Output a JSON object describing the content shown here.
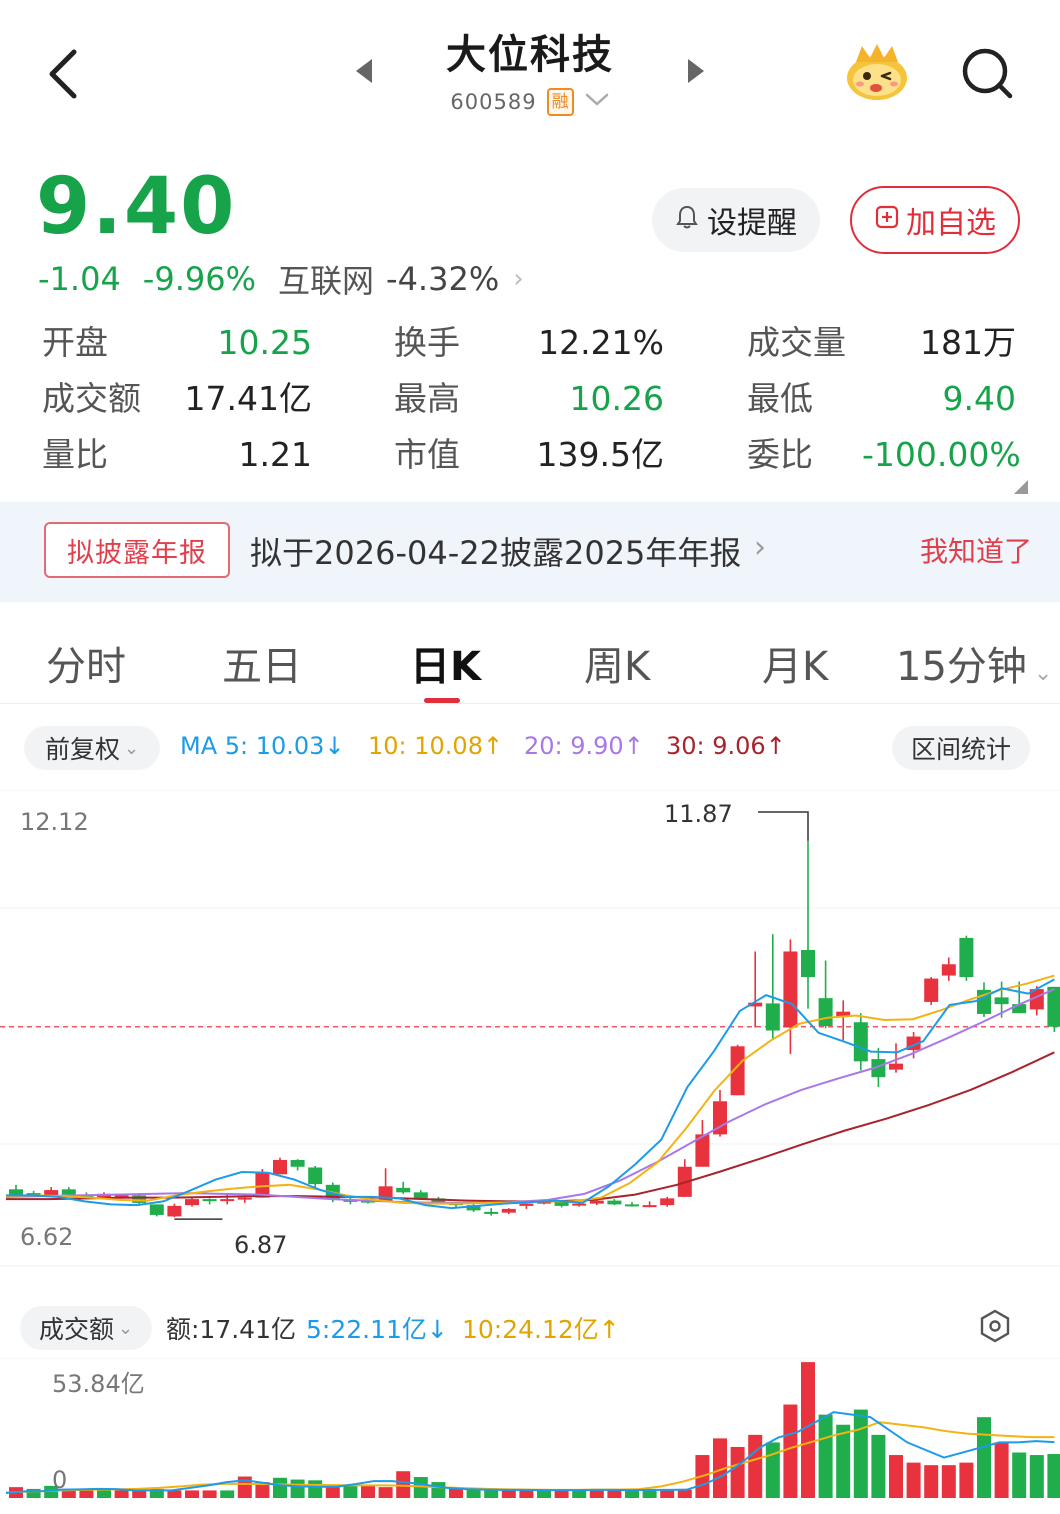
{
  "header": {
    "stock_name": "大位科技",
    "stock_code": "600589",
    "margin_badge": "融"
  },
  "quote": {
    "price": "9.40",
    "change": "-1.04",
    "change_pct": "-9.96%",
    "industry": "互联网",
    "industry_pct": "-4.32%"
  },
  "actions": {
    "remind_label": "设提醒",
    "add_label": "加自选"
  },
  "stats": [
    [
      {
        "label": "开盘",
        "value": "10.25",
        "color": "green"
      },
      {
        "label": "换手",
        "value": "12.21%",
        "color": "normal"
      },
      {
        "label": "成交量",
        "value": "181万",
        "color": "normal"
      }
    ],
    [
      {
        "label": "成交额",
        "value": "17.41亿",
        "color": "normal"
      },
      {
        "label": "最高",
        "value": "10.26",
        "color": "green"
      },
      {
        "label": "最低",
        "value": "9.40",
        "color": "green"
      }
    ],
    [
      {
        "label": "量比",
        "value": "1.21",
        "color": "normal"
      },
      {
        "label": "市值",
        "value": "139.5亿",
        "color": "normal"
      },
      {
        "label": "委比",
        "value": "-100.00%",
        "color": "green"
      }
    ]
  ],
  "notice": {
    "badge": "拟披露年报",
    "text": "拟于2026-04-22披露2025年年报",
    "dismiss": "我知道了"
  },
  "tabs": [
    "分时",
    "五日",
    "日K",
    "周K",
    "月K",
    "15分钟"
  ],
  "active_tab": "日K",
  "ma_bar": {
    "adjust": "前复权",
    "ma5": "MA 5: 10.03↓",
    "ma10": "10: 10.08↑",
    "ma20": "20: 9.90↑",
    "ma30": "30: 9.06↑",
    "range_stats": "区间统计"
  },
  "colors": {
    "up": "#e8323d",
    "down": "#1fae4b",
    "ma5": "#1e9be8",
    "ma10": "#f2b313",
    "ma20": "#a878e8",
    "ma30": "#a8242c",
    "price_green": "#16a34a"
  },
  "chart_data": [
    {
      "type": "candlestick",
      "title": "日K",
      "y_axis_top_label": "12.12",
      "y_axis_bottom_label": "6.62",
      "ylim": [
        6.62,
        12.12
      ],
      "annotations": {
        "high": "11.87",
        "low": "6.87"
      },
      "current_price_line": 9.4,
      "ohlc": [
        [
          7.24,
          7.3,
          7.14,
          7.17
        ],
        [
          7.19,
          7.22,
          7.14,
          7.18
        ],
        [
          7.16,
          7.27,
          7.15,
          7.23
        ],
        [
          7.24,
          7.27,
          7.14,
          7.17
        ],
        [
          7.16,
          7.2,
          7.12,
          7.14
        ],
        [
          7.13,
          7.2,
          7.11,
          7.18
        ],
        [
          7.15,
          7.18,
          7.13,
          7.16
        ],
        [
          7.16,
          7.19,
          7.03,
          7.06
        ],
        [
          7.04,
          7.04,
          6.88,
          6.9
        ],
        [
          6.88,
          7.05,
          6.87,
          7.02
        ],
        [
          7.03,
          7.13,
          7.01,
          7.11
        ],
        [
          7.11,
          7.12,
          7.04,
          7.1
        ],
        [
          7.1,
          7.18,
          7.04,
          7.11
        ],
        [
          7.11,
          7.17,
          7.06,
          7.13
        ],
        [
          7.13,
          7.51,
          7.13,
          7.47
        ],
        [
          7.44,
          7.66,
          7.44,
          7.63
        ],
        [
          7.63,
          7.64,
          7.49,
          7.54
        ],
        [
          7.53,
          7.55,
          7.27,
          7.31
        ],
        [
          7.3,
          7.33,
          7.07,
          7.11
        ],
        [
          7.1,
          7.13,
          7.04,
          7.09
        ],
        [
          7.09,
          7.11,
          7.05,
          7.07
        ],
        [
          7.09,
          7.52,
          7.08,
          7.28
        ],
        [
          7.26,
          7.34,
          7.18,
          7.2
        ],
        [
          7.2,
          7.23,
          7.1,
          7.12
        ],
        [
          7.12,
          7.14,
          7.05,
          7.06
        ],
        [
          7.06,
          7.07,
          7.0,
          7.03
        ],
        [
          7.03,
          7.06,
          6.94,
          6.96
        ],
        [
          6.94,
          6.99,
          6.89,
          6.93
        ],
        [
          6.93,
          6.99,
          6.91,
          6.98
        ],
        [
          7.02,
          7.05,
          6.98,
          7.05
        ],
        [
          7.05,
          7.1,
          7.04,
          7.08
        ],
        [
          7.08,
          7.1,
          7.0,
          7.02
        ],
        [
          7.03,
          7.07,
          7.01,
          7.05
        ],
        [
          7.05,
          7.1,
          7.03,
          7.09
        ],
        [
          7.09,
          7.11,
          7.03,
          7.04
        ],
        [
          7.04,
          7.07,
          7.01,
          7.03
        ],
        [
          7.03,
          7.08,
          7.0,
          7.03
        ],
        [
          7.03,
          7.14,
          7.01,
          7.12
        ],
        [
          7.14,
          7.64,
          7.14,
          7.54
        ],
        [
          7.54,
          8.16,
          7.54,
          7.97
        ],
        [
          7.97,
          8.56,
          7.94,
          8.41
        ],
        [
          8.49,
          9.16,
          8.49,
          9.14
        ],
        [
          9.67,
          10.4,
          9.39,
          9.72
        ],
        [
          9.71,
          10.63,
          9.22,
          9.35
        ],
        [
          9.39,
          10.56,
          9.04,
          10.4
        ],
        [
          10.42,
          11.87,
          9.64,
          10.06
        ],
        [
          9.78,
          10.28,
          9.38,
          9.41
        ],
        [
          9.53,
          9.75,
          9.22,
          9.6
        ],
        [
          9.46,
          9.58,
          8.82,
          8.94
        ],
        [
          8.97,
          9.12,
          8.6,
          8.73
        ],
        [
          8.83,
          9.18,
          8.79,
          8.91
        ],
        [
          9.09,
          9.33,
          8.98,
          9.27
        ],
        [
          9.73,
          10.06,
          9.69,
          10.04
        ],
        [
          10.08,
          10.32,
          10.01,
          10.23
        ],
        [
          10.58,
          10.61,
          10.01,
          10.06
        ],
        [
          9.89,
          9.99,
          9.53,
          9.57
        ],
        [
          9.79,
          10.0,
          9.52,
          9.7
        ],
        [
          9.7,
          10.0,
          9.58,
          9.58
        ],
        [
          9.63,
          9.94,
          9.55,
          9.9
        ],
        [
          9.93,
          9.93,
          9.33,
          9.4
        ]
      ],
      "ma5_trend": [
        7.16,
        7.16,
        7.14,
        7.08,
        7.04,
        7.03,
        7.08,
        7.22,
        7.37,
        7.47,
        7.46,
        7.37,
        7.23,
        7.14,
        7.14,
        7.12,
        7.03,
        6.99,
        7.02,
        7.05,
        7.07,
        7.09,
        7.06,
        7.28,
        7.57,
        7.9,
        8.6,
        9.07,
        9.61,
        9.82,
        9.7,
        9.32,
        9.2,
        9.07,
        9.06,
        9.21,
        9.69,
        9.74,
        9.91,
        9.84,
        10.03
      ],
      "ma10_trend": [
        7.15,
        7.16,
        7.15,
        7.13,
        7.1,
        7.09,
        7.16,
        7.21,
        7.25,
        7.28,
        7.3,
        7.24,
        7.16,
        7.1,
        7.06,
        7.05,
        7.05,
        7.06,
        7.06,
        7.08,
        7.08,
        7.13,
        7.32,
        7.6,
        8.05,
        8.55,
        8.95,
        9.22,
        9.44,
        9.52,
        9.55,
        9.49,
        9.5,
        9.62,
        9.76,
        9.88,
        9.97,
        10.08
      ],
      "ma20_trend": [
        7.14,
        7.15,
        7.16,
        7.17,
        7.18,
        7.19,
        7.18,
        7.17,
        7.14,
        7.11,
        7.09,
        7.07,
        7.06,
        7.06,
        7.07,
        7.1,
        7.18,
        7.36,
        7.6,
        7.87,
        8.14,
        8.37,
        8.56,
        8.71,
        8.85,
        9.03,
        9.24,
        9.46,
        9.69,
        9.9
      ],
      "ma30_trend": [
        7.11,
        7.11,
        7.12,
        7.13,
        7.13,
        7.14,
        7.15,
        7.15,
        7.14,
        7.13,
        7.11,
        7.09,
        7.08,
        7.08,
        7.1,
        7.17,
        7.3,
        7.47,
        7.65,
        7.84,
        8.02,
        8.18,
        8.36,
        8.56,
        8.8,
        9.06
      ]
    },
    {
      "type": "bar",
      "title": "成交额",
      "y_axis_top_label": "53.84亿",
      "y_axis_bottom_label": "0",
      "ylim": [
        0,
        53.84
      ],
      "unit": "亿",
      "values": [
        4.3,
        3.6,
        4.8,
        3.0,
        3.0,
        3.0,
        3.0,
        3.0,
        3.6,
        3.0,
        3.0,
        3.0,
        3.0,
        8.5,
        6.3,
        8.0,
        7.3,
        7.0,
        4.3,
        4.8,
        4.8,
        4.3,
        10.6,
        8.3,
        6.3,
        3.6,
        3.3,
        3.0,
        3.0,
        3.3,
        3.0,
        3.3,
        3.0,
        3.0,
        3.3,
        3.0,
        3.0,
        3.0,
        3.3,
        17.0,
        23.6,
        20.2,
        25.0,
        22.0,
        37.0,
        53.8,
        33.0,
        29.0,
        35.0,
        25.0,
        17.0,
        14.0,
        13.0,
        13.0,
        14.0,
        32.0,
        22.0,
        18.0,
        17.0,
        17.4
      ],
      "up_flags": [
        1,
        0,
        0,
        1,
        1,
        0,
        1,
        1,
        0,
        1,
        1,
        1,
        0,
        1,
        1,
        0,
        0,
        0,
        1,
        0,
        1,
        1,
        1,
        0,
        0,
        1,
        0,
        0,
        1,
        1,
        0,
        1,
        0,
        1,
        1,
        0,
        0,
        1,
        1,
        1,
        1,
        1,
        1,
        0,
        1,
        1,
        0,
        0,
        0,
        0,
        1,
        1,
        1,
        1,
        1,
        0,
        1,
        0,
        0,
        0
      ],
      "ma5_trend": [
        2.0,
        2.6,
        2.7,
        3.3,
        3.4,
        3.6,
        3.5,
        3.0,
        3.0,
        3.0,
        4.0,
        5.0,
        6.3,
        7.0,
        6.0,
        5.0,
        4.6,
        4.4,
        4.5,
        5.5,
        6.7,
        6.7,
        6.0,
        5.0,
        4.0,
        3.5,
        3.3,
        3.2,
        3.2,
        3.1,
        3.1,
        3.1,
        3.2,
        3.2,
        3.1,
        3.2,
        3.2,
        3.3,
        5.5,
        9.0,
        14.0,
        20.0,
        24.0,
        26.0,
        30.0,
        34.0,
        33.0,
        32.0,
        27.0,
        22.0,
        19.0,
        16.0,
        18.0,
        20.0,
        22.0,
        22.0,
        22.5,
        22.1
      ],
      "ma10_trend": [
        2.2,
        2.5,
        2.8,
        3.1,
        3.3,
        3.4,
        3.6,
        4.0,
        4.6,
        5.3,
        5.6,
        5.6,
        5.5,
        5.3,
        5.2,
        5.1,
        5.0,
        5.0,
        4.9,
        4.6,
        4.2,
        3.9,
        3.6,
        3.4,
        3.3,
        3.2,
        3.2,
        3.3,
        3.3,
        3.5,
        4.6,
        6.5,
        9.0,
        12.0,
        14.5,
        17.0,
        20.0,
        22.5,
        25.0,
        27.0,
        30.0,
        29.0,
        28.0,
        26.5,
        25.5,
        25.0,
        24.5,
        24.1,
        24.12
      ]
    }
  ],
  "volume_bar": {
    "selector": "成交额",
    "amount": "额:17.41亿",
    "ma5": "5:22.11亿↓",
    "ma10": "10:24.12亿↑"
  }
}
